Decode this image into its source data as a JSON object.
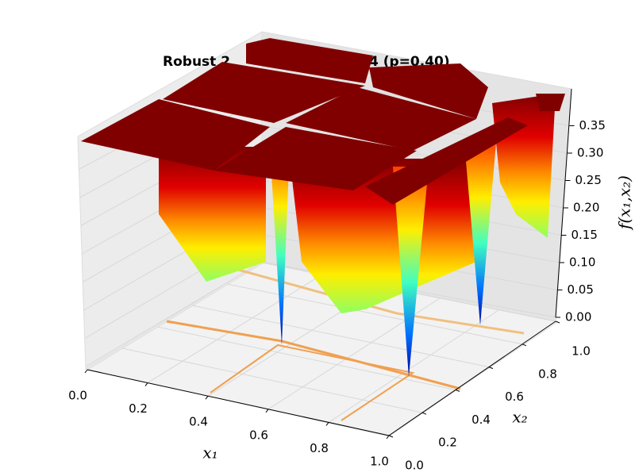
{
  "chart_data": {
    "type": "surface",
    "title_parts": [
      "Robust 2",
      "4 (p=0.40)"
    ],
    "xlabel": "x₁",
    "ylabel": "x₂",
    "zlabel": "f(x₁,x₂)",
    "xlim": [
      0,
      1
    ],
    "ylim": [
      0,
      1
    ],
    "zlim": [
      0,
      0.4
    ],
    "xticks": [
      {
        "value": 0,
        "label": "0.0"
      },
      {
        "value": 0.2,
        "label": "0.2"
      },
      {
        "value": 0.4,
        "label": "0.4"
      },
      {
        "value": 0.6,
        "label": "0.6"
      },
      {
        "value": 0.8,
        "label": "0.8"
      },
      {
        "value": 1,
        "label": "1.0"
      }
    ],
    "yticks": [
      {
        "value": 0,
        "label": "0.0"
      },
      {
        "value": 0.2,
        "label": "0.2"
      },
      {
        "value": 0.4,
        "label": "0.4"
      },
      {
        "value": 0.6,
        "label": "0.6"
      },
      {
        "value": 0.8,
        "label": "0.8"
      },
      {
        "value": 1,
        "label": "1.0"
      }
    ],
    "zticks": [
      {
        "value": 0,
        "label": "0.00"
      },
      {
        "value": 0.05,
        "label": "0.05"
      },
      {
        "value": 0.1,
        "label": "0.10"
      },
      {
        "value": 0.15,
        "label": "0.15"
      },
      {
        "value": 0.2,
        "label": "0.20"
      },
      {
        "value": 0.25,
        "label": "0.25"
      },
      {
        "value": 0.3,
        "label": "0.30"
      },
      {
        "value": 0.35,
        "label": "0.35"
      }
    ],
    "grid": true
  }
}
